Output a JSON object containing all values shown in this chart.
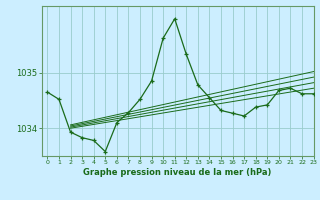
{
  "title": "Graphe pression niveau de la mer (hPa)",
  "bg_color": "#cceeff",
  "grid_color": "#99cccc",
  "line_color": "#1a6b1a",
  "spine_color": "#669966",
  "xlim": [
    -0.5,
    23
  ],
  "ylim": [
    1033.5,
    1036.2
  ],
  "yticks": [
    1034,
    1035
  ],
  "xtick_labels": [
    "0",
    "1",
    "2",
    "3",
    "4",
    "5",
    "6",
    "7",
    "8",
    "9",
    "10",
    "11",
    "12",
    "13",
    "14",
    "15",
    "16",
    "17",
    "18",
    "19",
    "20",
    "21",
    "22",
    "23"
  ],
  "xticks": [
    0,
    1,
    2,
    3,
    4,
    5,
    6,
    7,
    8,
    9,
    10,
    11,
    12,
    13,
    14,
    15,
    16,
    17,
    18,
    19,
    20,
    21,
    22,
    23
  ],
  "main_line": [
    [
      0,
      1034.65
    ],
    [
      1,
      1034.52
    ],
    [
      2,
      1033.93
    ],
    [
      3,
      1033.83
    ],
    [
      4,
      1033.78
    ],
    [
      5,
      1033.58
    ],
    [
      6,
      1034.1
    ],
    [
      7,
      1034.28
    ],
    [
      8,
      1034.52
    ],
    [
      9,
      1034.85
    ],
    [
      10,
      1035.62
    ],
    [
      11,
      1035.97
    ],
    [
      12,
      1035.33
    ],
    [
      13,
      1034.78
    ],
    [
      14,
      1034.55
    ],
    [
      15,
      1034.32
    ],
    [
      16,
      1034.27
    ],
    [
      17,
      1034.22
    ],
    [
      18,
      1034.38
    ],
    [
      19,
      1034.42
    ],
    [
      20,
      1034.68
    ],
    [
      21,
      1034.72
    ],
    [
      22,
      1034.62
    ],
    [
      23,
      1034.62
    ]
  ],
  "trend_lines": [
    [
      [
        2,
        1034.0
      ],
      [
        23,
        1034.72
      ]
    ],
    [
      [
        2,
        1034.02
      ],
      [
        23,
        1034.82
      ]
    ],
    [
      [
        2,
        1034.04
      ],
      [
        23,
        1034.92
      ]
    ],
    [
      [
        2,
        1034.06
      ],
      [
        23,
        1035.02
      ]
    ]
  ]
}
